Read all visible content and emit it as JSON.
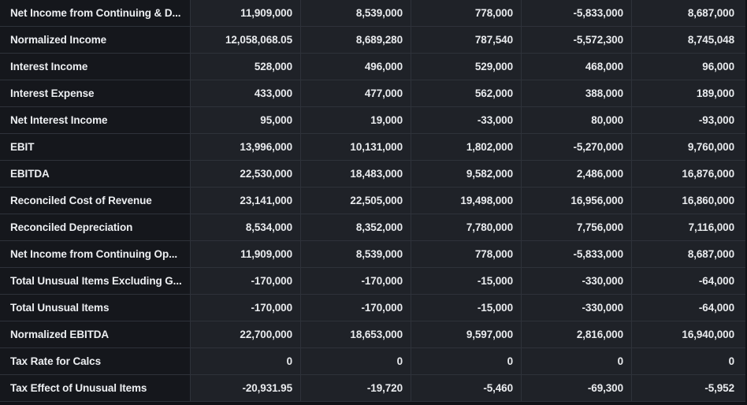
{
  "table": {
    "rows": [
      {
        "label": "Net Income from Continuing & D...",
        "values": [
          "11,909,000",
          "8,539,000",
          "778,000",
          "-5,833,000",
          "8,687,000"
        ]
      },
      {
        "label": "Normalized Income",
        "values": [
          "12,058,068.05",
          "8,689,280",
          "787,540",
          "-5,572,300",
          "8,745,048"
        ]
      },
      {
        "label": "Interest Income",
        "values": [
          "528,000",
          "496,000",
          "529,000",
          "468,000",
          "96,000"
        ]
      },
      {
        "label": "Interest Expense",
        "values": [
          "433,000",
          "477,000",
          "562,000",
          "388,000",
          "189,000"
        ]
      },
      {
        "label": "Net Interest Income",
        "values": [
          "95,000",
          "19,000",
          "-33,000",
          "80,000",
          "-93,000"
        ]
      },
      {
        "label": "EBIT",
        "values": [
          "13,996,000",
          "10,131,000",
          "1,802,000",
          "-5,270,000",
          "9,760,000"
        ]
      },
      {
        "label": "EBITDA",
        "values": [
          "22,530,000",
          "18,483,000",
          "9,582,000",
          "2,486,000",
          "16,876,000"
        ]
      },
      {
        "label": "Reconciled Cost of Revenue",
        "values": [
          "23,141,000",
          "22,505,000",
          "19,498,000",
          "16,956,000",
          "16,860,000"
        ]
      },
      {
        "label": "Reconciled Depreciation",
        "values": [
          "8,534,000",
          "8,352,000",
          "7,780,000",
          "7,756,000",
          "7,116,000"
        ]
      },
      {
        "label": "Net Income from Continuing Op...",
        "values": [
          "11,909,000",
          "8,539,000",
          "778,000",
          "-5,833,000",
          "8,687,000"
        ]
      },
      {
        "label": "Total Unusual Items Excluding G...",
        "values": [
          "-170,000",
          "-170,000",
          "-15,000",
          "-330,000",
          "-64,000"
        ]
      },
      {
        "label": "Total Unusual Items",
        "values": [
          "-170,000",
          "-170,000",
          "-15,000",
          "-330,000",
          "-64,000"
        ]
      },
      {
        "label": "Normalized EBITDA",
        "values": [
          "22,700,000",
          "18,653,000",
          "9,597,000",
          "2,816,000",
          "16,940,000"
        ]
      },
      {
        "label": "Tax Rate for Calcs",
        "values": [
          "0",
          "0",
          "0",
          "0",
          "0"
        ]
      },
      {
        "label": "Tax Effect of Unusual Items",
        "values": [
          "-20,931.95",
          "-19,720",
          "-5,460",
          "-69,300",
          "-5,952"
        ]
      }
    ]
  }
}
